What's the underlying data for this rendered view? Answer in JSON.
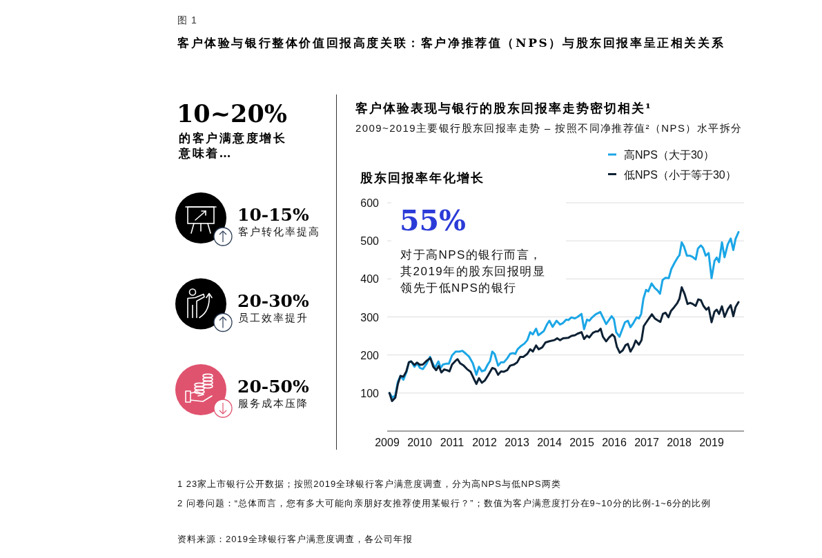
{
  "chart_data": [
    {
      "type": "other",
      "title": "10~20%",
      "subtitle": "的客户满意度增长意味着…",
      "annotations": [
        "图 1",
        "客户体验与银行整体价值回报高度关联：客户净推荐值（NPS）与股东回报率呈正相关关系",
        "10-15%",
        "客户转化率提高",
        "20-30%",
        "员工效率提升",
        "20-50%",
        "服务成本压降"
      ]
    },
    {
      "type": "line",
      "title": "客户体验表现与银行的股东回报率走势密切相关¹",
      "subtitle": "2009~2019主要银行股东回报率走势 – 按照不同净推荐值²（NPS）水平拆分",
      "ylabel": "股东回报率年化增长",
      "xlim": [
        2009,
        2020
      ],
      "xticks": [
        2009,
        2010,
        2011,
        2012,
        2013,
        2014,
        2015,
        2016,
        2017,
        2018,
        2019
      ],
      "ylim": [
        0,
        600
      ],
      "yticks": [
        100,
        200,
        300,
        400,
        500,
        600
      ],
      "grid": "y",
      "legend": "top right",
      "series": [
        {
          "name": "高NPS（大于30）",
          "color": "#1ba6e6",
          "x": [
            2009.07,
            2009.16,
            2009.25,
            2009.33,
            2009.41,
            2009.5,
            2009.59,
            2009.67,
            2009.74,
            2009.84,
            2009.92,
            2010.01,
            2010.1,
            2010.2,
            2010.32,
            2010.39,
            2010.47,
            2010.58,
            2010.65,
            2010.72,
            2010.81,
            2010.9,
            2011.0,
            2011.11,
            2011.22,
            2011.32,
            2011.43,
            2011.53,
            2011.64,
            2011.75,
            2011.83,
            2011.92,
            2012.01,
            2012.1,
            2012.17,
            2012.24,
            2012.31,
            2012.42,
            2012.51,
            2012.6,
            2012.7,
            2012.79,
            2012.88,
            2012.95,
            2013.02,
            2013.13,
            2013.23,
            2013.32,
            2013.41,
            2013.49,
            2013.59,
            2013.66,
            2013.74,
            2013.83,
            2013.93,
            2014.0,
            2014.1,
            2014.22,
            2014.33,
            2014.42,
            2014.52,
            2014.59,
            2014.68,
            2014.78,
            2014.87,
            2014.99,
            2015.07,
            2015.16,
            2015.23,
            2015.32,
            2015.43,
            2015.57,
            2015.65,
            2015.75,
            2015.82,
            2015.92,
            2015.99,
            2016.06,
            2016.16,
            2016.24,
            2016.33,
            2016.42,
            2016.5,
            2016.59,
            2016.69,
            2016.76,
            2016.83,
            2016.9,
            2016.98,
            2017.05,
            2017.15,
            2017.25,
            2017.34,
            2017.41,
            2017.49,
            2017.58,
            2017.68,
            2017.76,
            2017.87,
            2017.96,
            2018.01,
            2018.08,
            2018.15,
            2018.24,
            2018.33,
            2018.41,
            2018.51,
            2018.58,
            2018.67,
            2018.74,
            2018.82,
            2018.91,
            2019.0,
            2019.09,
            2019.16,
            2019.23,
            2019.32,
            2019.4,
            2019.5,
            2019.59,
            2019.67,
            2019.74,
            2019.83
          ],
          "values": [
            100,
            88,
            94,
            130,
            145,
            135,
            154,
            181,
            183,
            169,
            178,
            166,
            163,
            175,
            195,
            181,
            166,
            183,
            166,
            175,
            177,
            177,
            199,
            209,
            209,
            211,
            203,
            195,
            178,
            148,
            169,
            157,
            160,
            175,
            184,
            209,
            203,
            172,
            181,
            181,
            191,
            203,
            205,
            203,
            215,
            224,
            230,
            239,
            260,
            254,
            269,
            252,
            257,
            263,
            281,
            290,
            274,
            290,
            280,
            284,
            293,
            292,
            299,
            296,
            300,
            308,
            268,
            293,
            290,
            299,
            307,
            313,
            299,
            281,
            290,
            302,
            294,
            260,
            248,
            266,
            286,
            290,
            273,
            284,
            299,
            296,
            308,
            348,
            371,
            367,
            388,
            376,
            369,
            361,
            397,
            403,
            402,
            426,
            444,
            457,
            462,
            496,
            485,
            461,
            461,
            458,
            451,
            480,
            488,
            481,
            461,
            468,
            402,
            447,
            456,
            444,
            496,
            457,
            491,
            506,
            476,
            505,
            523
          ]
        },
        {
          "name": "低NPS（小于等于30）",
          "color": "#0e2134",
          "x": [
            2009.07,
            2009.15,
            2009.25,
            2009.33,
            2009.41,
            2009.5,
            2009.59,
            2009.67,
            2009.74,
            2009.84,
            2009.92,
            2010.01,
            2010.1,
            2010.22,
            2010.33,
            2010.42,
            2010.51,
            2010.59,
            2010.67,
            2010.76,
            2010.84,
            2010.92,
            2011.0,
            2011.11,
            2011.17,
            2011.25,
            2011.36,
            2011.46,
            2011.57,
            2011.68,
            2011.75,
            2011.83,
            2011.92,
            2012.01,
            2012.1,
            2012.24,
            2012.33,
            2012.42,
            2012.51,
            2012.6,
            2012.7,
            2012.79,
            2012.91,
            2013.01,
            2013.1,
            2013.2,
            2013.32,
            2013.41,
            2013.49,
            2013.59,
            2013.67,
            2013.78,
            2013.88,
            2014.0,
            2014.15,
            2014.24,
            2014.33,
            2014.42,
            2014.58,
            2014.68,
            2014.79,
            2014.87,
            2014.99,
            2015.07,
            2015.16,
            2015.23,
            2015.34,
            2015.43,
            2015.5,
            2015.58,
            2015.65,
            2015.75,
            2015.84,
            2015.94,
            2016.01,
            2016.08,
            2016.17,
            2016.26,
            2016.35,
            2016.42,
            2016.5,
            2016.59,
            2016.66,
            2016.76,
            2016.84,
            2016.91,
            2017.02,
            2017.16,
            2017.25,
            2017.34,
            2017.42,
            2017.5,
            2017.58,
            2017.67,
            2017.75,
            2017.85,
            2017.94,
            2018.01,
            2018.08,
            2018.17,
            2018.26,
            2018.34,
            2018.42,
            2018.51,
            2018.59,
            2018.67,
            2018.75,
            2018.84,
            2018.91,
            2019.0,
            2019.09,
            2019.16,
            2019.23,
            2019.32,
            2019.4,
            2019.5,
            2019.59,
            2019.67,
            2019.74,
            2019.83
          ],
          "values": [
            100,
            79,
            88,
            124,
            145,
            143,
            157,
            181,
            183,
            174,
            180,
            174,
            175,
            185,
            192,
            169,
            160,
            171,
            154,
            162,
            160,
            157,
            175,
            185,
            189,
            178,
            172,
            163,
            156,
            136,
            124,
            139,
            127,
            133,
            145,
            166,
            163,
            148,
            157,
            156,
            160,
            172,
            175,
            181,
            195,
            195,
            203,
            215,
            209,
            225,
            215,
            220,
            233,
            236,
            239,
            244,
            239,
            244,
            245,
            250,
            252,
            256,
            260,
            242,
            251,
            246,
            258,
            262,
            262,
            269,
            248,
            236,
            246,
            254,
            248,
            222,
            206,
            212,
            226,
            229,
            209,
            222,
            238,
            227,
            239,
            276,
            290,
            307,
            296,
            291,
            287,
            308,
            311,
            299,
            316,
            326,
            336,
            348,
            378,
            360,
            334,
            337,
            334,
            329,
            346,
            344,
            329,
            319,
            325,
            286,
            314,
            319,
            308,
            328,
            300,
            320,
            331,
            302,
            326,
            339
          ]
        }
      ],
      "annotations": [
        "55%",
        "对于高NPS的银行而言，其2019年的股东回报明显领先于低NPS的银行",
        "1 23家上市银行公开数据；按照2019全球银行客户满意度调查，分为高NPS与低NPS两类",
        "2 问卷问题：“总体而言，您有多大可能向亲朋好友推荐使用某银行？”；数值为客户满意度打分在9~10分的比例-1~6分的比例",
        "资料来源：2019全球银行客户满意度调查，各公司年报"
      ]
    }
  ]
}
